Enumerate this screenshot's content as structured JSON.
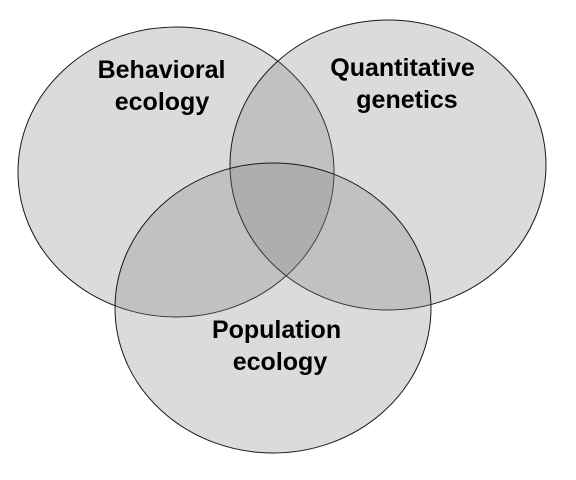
{
  "venn": {
    "sets": [
      {
        "id": "behavioral-ecology",
        "lines": [
          "Behavioral",
          "ecology"
        ]
      },
      {
        "id": "quantitative-genetics",
        "lines": [
          "Quantitative",
          "genetics"
        ]
      },
      {
        "id": "population-ecology",
        "lines": [
          "Population",
          "ecology"
        ]
      }
    ],
    "colors": {
      "fill": "#7f7f7f",
      "stroke": "#1a1a1a",
      "text": "#000000"
    }
  }
}
